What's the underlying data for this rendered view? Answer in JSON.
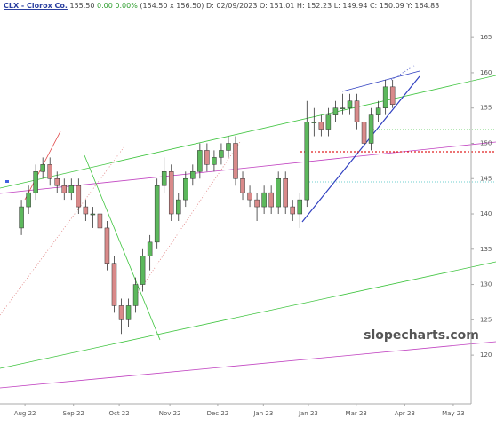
{
  "header": {
    "symbol": "CLX - Clorox Co.",
    "last": "155.50",
    "change": "0.00 0.00%",
    "detail": "(154.50 x 156.50) D: 02/09/2023 O: 151.01 H: 152.23 L: 149.94 C: 150.09 Y: 164.83"
  },
  "watermark": "slopecharts.com",
  "chart_data": {
    "type": "candlestick",
    "x": [
      0,
      1,
      2,
      3,
      4,
      5,
      6,
      7,
      8,
      9,
      10,
      11,
      12,
      13,
      14,
      15,
      16,
      17,
      18,
      19,
      20,
      21,
      22,
      23,
      24,
      25,
      26,
      27,
      28,
      29,
      30,
      31,
      32,
      33,
      34,
      35,
      36,
      37,
      38,
      39,
      40,
      41,
      42,
      43,
      44,
      45,
      46,
      47,
      48,
      49,
      50,
      51,
      52
    ],
    "open": [
      138,
      141,
      143,
      146,
      147,
      145,
      144,
      143,
      144,
      141,
      140,
      140,
      138,
      133,
      127,
      125,
      127,
      130,
      134,
      136,
      144,
      146,
      140,
      142,
      145,
      146,
      149,
      147,
      148,
      149,
      150,
      145,
      143,
      142,
      141,
      143,
      141,
      145,
      141,
      140,
      142,
      153,
      153,
      152,
      154,
      155,
      155,
      156,
      153,
      150,
      154,
      155,
      158
    ],
    "high": [
      142,
      144,
      147,
      148,
      148,
      146,
      145,
      145,
      145,
      142,
      141,
      141,
      139,
      134,
      128,
      128,
      131,
      135,
      137,
      145,
      148,
      147,
      143,
      146,
      147,
      150,
      150,
      149,
      150,
      151,
      151,
      146,
      144,
      143,
      144,
      144,
      146,
      146,
      142,
      143,
      156,
      155,
      154,
      155,
      156,
      157,
      157,
      157,
      154,
      155,
      156,
      159,
      159
    ],
    "low": [
      137,
      140,
      142,
      145,
      144,
      143,
      142,
      142,
      140,
      139,
      138,
      137,
      132,
      126,
      123,
      124,
      126,
      129,
      132,
      135,
      143,
      139,
      139,
      141,
      144,
      145,
      146,
      146,
      147,
      148,
      144,
      142,
      141,
      139,
      140,
      140,
      140,
      140,
      139,
      138,
      141,
      151,
      151,
      151,
      153,
      154,
      154,
      152,
      149,
      149,
      153,
      154,
      155
    ],
    "close": [
      141,
      143,
      146,
      147,
      145,
      144,
      143,
      144,
      141,
      140,
      140,
      138,
      133,
      127,
      125,
      127,
      130,
      134,
      136,
      144,
      146,
      140,
      142,
      145,
      146,
      149,
      147,
      148,
      149,
      150,
      145,
      143,
      142,
      141,
      143,
      141,
      145,
      141,
      140,
      142,
      153,
      153,
      152,
      154,
      155,
      155,
      156,
      153,
      150,
      154,
      155,
      158,
      155.5
    ],
    "up_color": "#5cb85c",
    "down_color": "#d98a8a",
    "xlim": [
      -3,
      63
    ],
    "xticks": [
      {
        "value": 0.5,
        "label": "Aug 22"
      },
      {
        "value": 7.3,
        "label": "Sep 22"
      },
      {
        "value": 13.7,
        "label": "Oct 22"
      },
      {
        "value": 20.8,
        "label": "Nov 22"
      },
      {
        "value": 27.5,
        "label": "Dec 22"
      },
      {
        "value": 33.9,
        "label": "Jan 23"
      },
      {
        "value": 40.2,
        "label": "Jan 23"
      },
      {
        "value": 46.9,
        "label": "Mar 23"
      },
      {
        "value": 53.7,
        "label": "Apr 23"
      },
      {
        "value": 60.5,
        "label": "May 23"
      }
    ],
    "ylim": [
      113.1,
      170.3
    ],
    "yticks": [
      120,
      125,
      130,
      135,
      140,
      145,
      150,
      155,
      160,
      165
    ]
  }
}
